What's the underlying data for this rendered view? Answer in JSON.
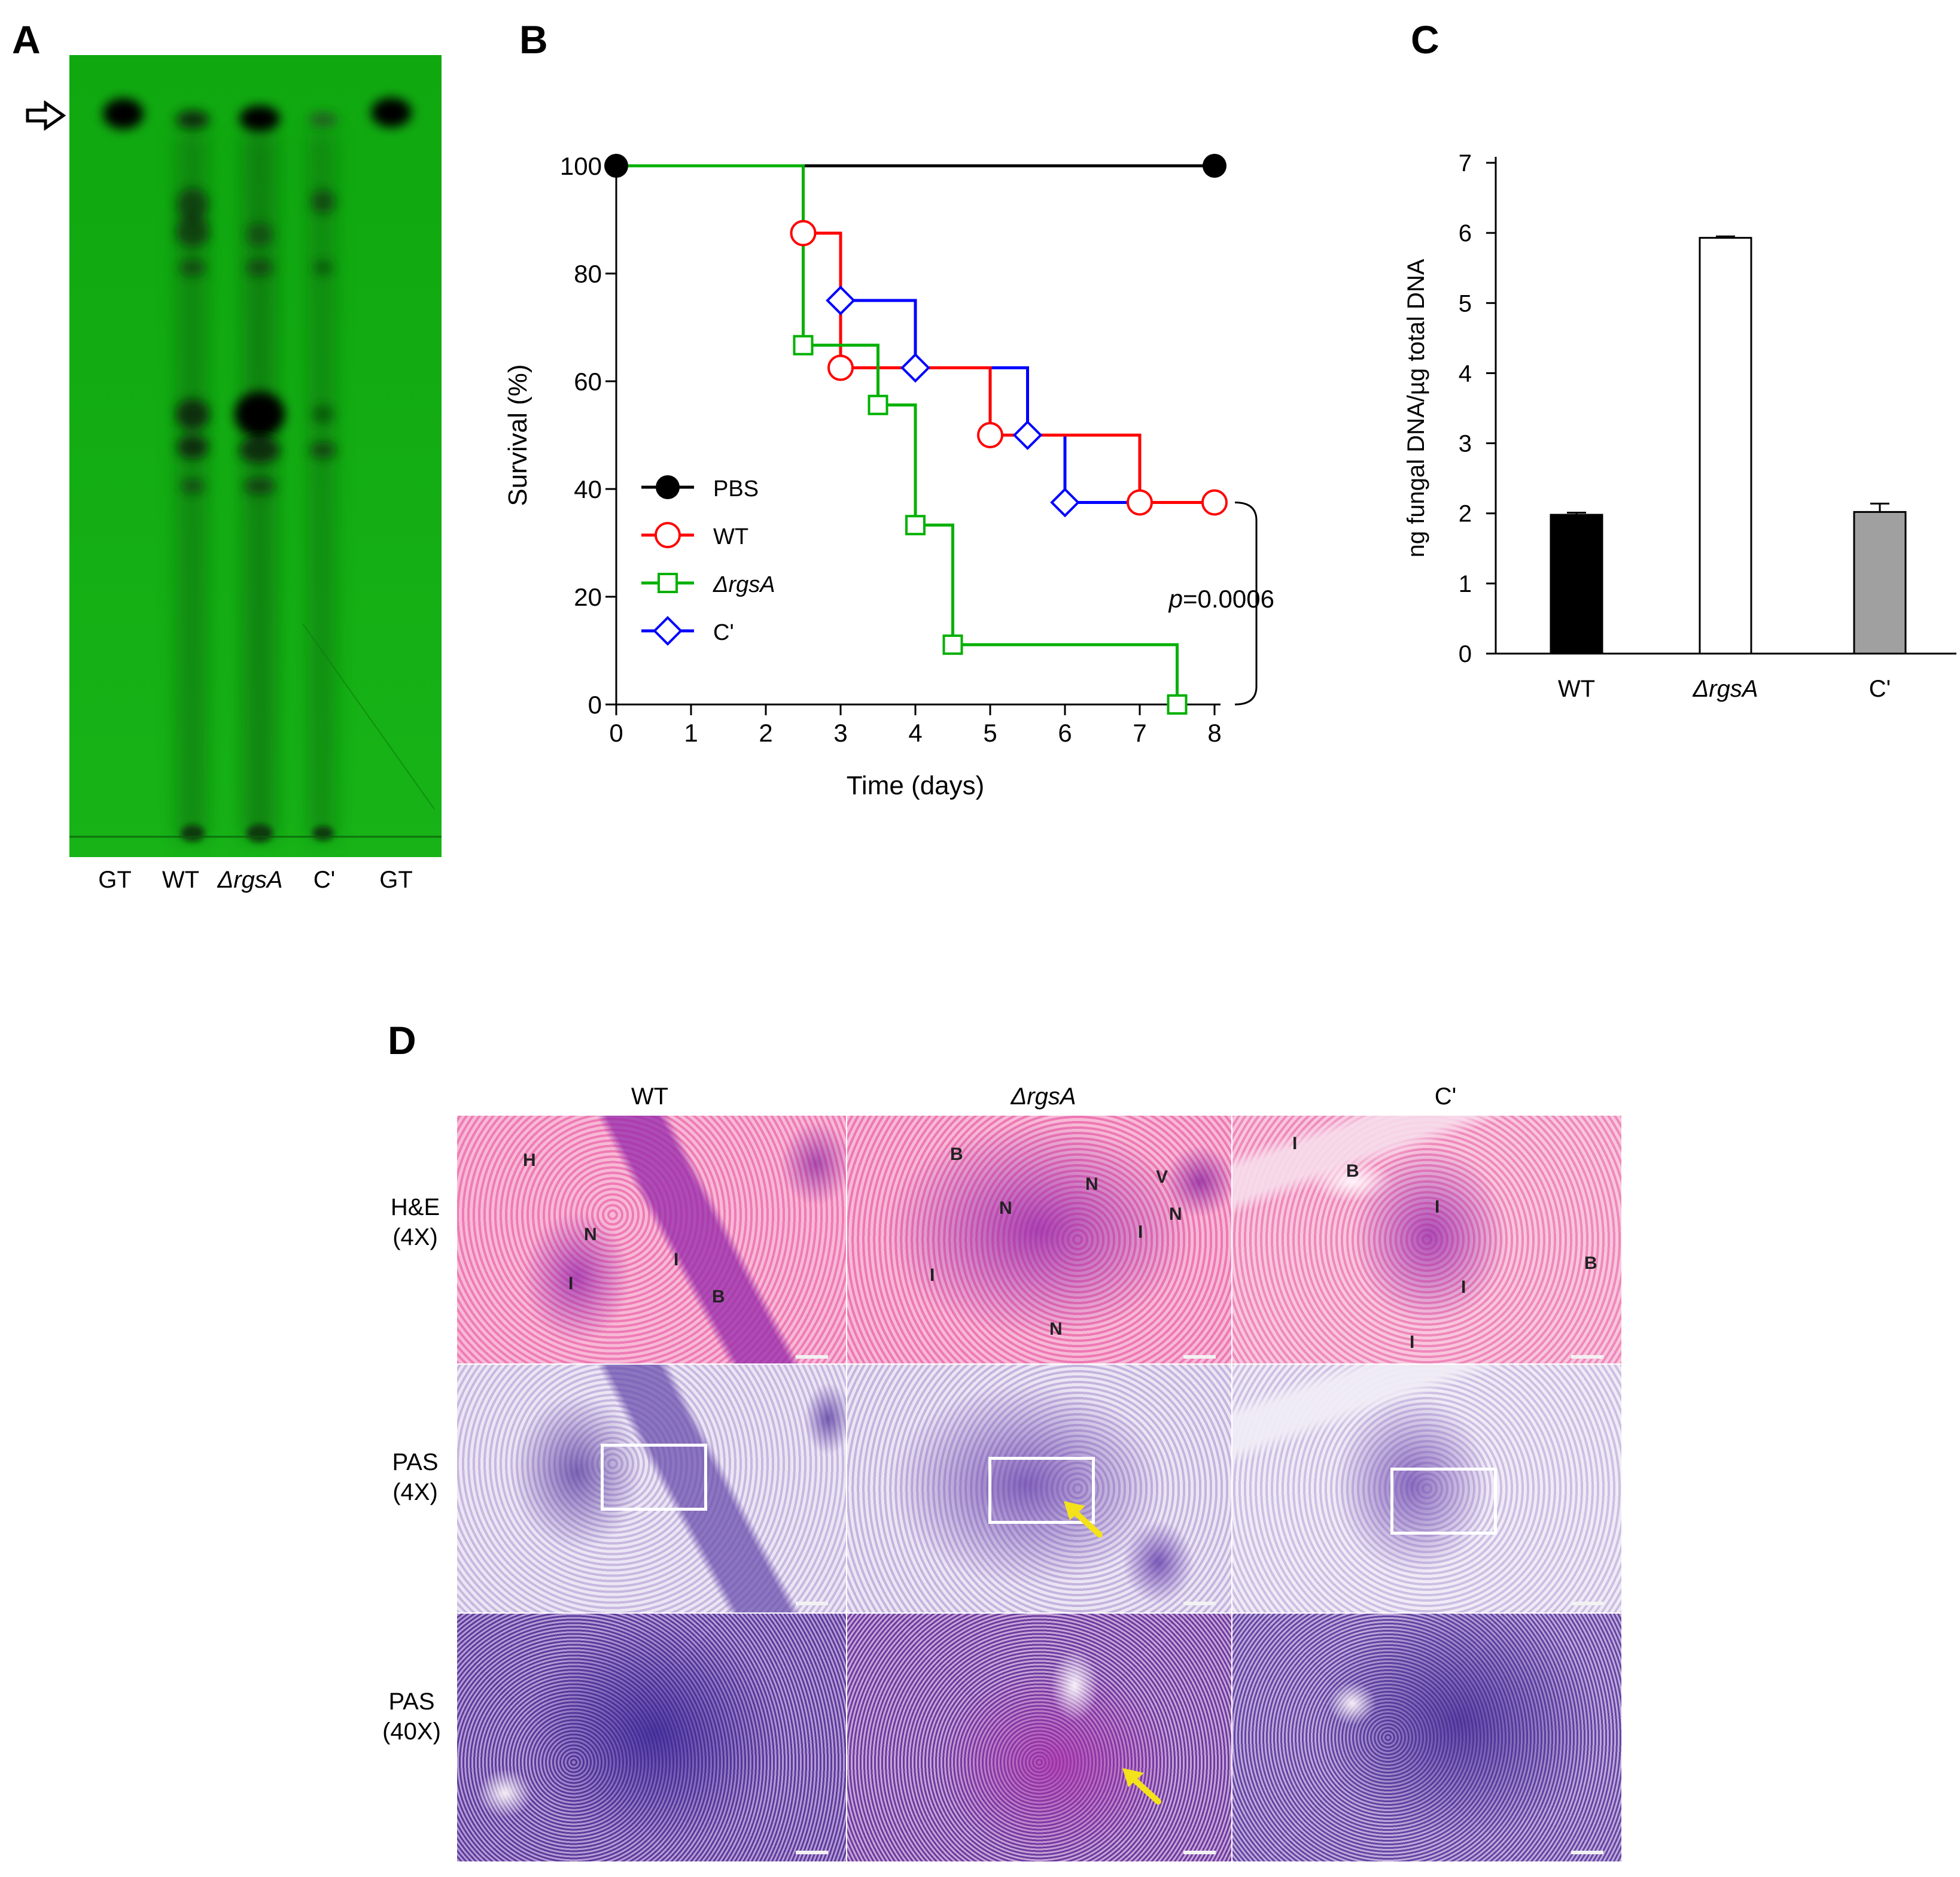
{
  "panel_labels": {
    "a": "A",
    "b": "B",
    "c": "C",
    "d": "D"
  },
  "tlc": {
    "lanes": [
      "GT",
      "WT",
      "ΔrgsA",
      "C'",
      "GT"
    ],
    "background_color": "#10b010",
    "arrow_icon": "hollow-right-arrow-icon"
  },
  "chart_data": [
    {
      "type": "line",
      "xlabel": "Time (days)",
      "ylabel": "Survival (%)",
      "xlim": [
        0,
        8
      ],
      "ylim": [
        0,
        100
      ],
      "xticks": [
        0,
        1,
        2,
        3,
        4,
        5,
        6,
        7,
        8
      ],
      "yticks": [
        0,
        20,
        40,
        60,
        80,
        100
      ],
      "annotation": "p=0.0006",
      "annotation_parts": {
        "italic": "p",
        "rest": "=0.0006"
      },
      "legend_placement": "lower-left",
      "series": [
        {
          "name": "PBS",
          "color": "#000000",
          "marker": "filled-circle",
          "x": [
            0,
            8
          ],
          "y": [
            100,
            100
          ],
          "markers": [
            [
              0,
              100
            ],
            [
              8,
              100
            ]
          ]
        },
        {
          "name": "WT",
          "color": "#ff0000",
          "marker": "open-circle",
          "x": [
            0,
            2.5,
            2.5,
            3,
            3,
            5,
            5,
            7,
            7,
            8
          ],
          "y": [
            100,
            100,
            87.5,
            87.5,
            62.5,
            62.5,
            50,
            50,
            37.5,
            37.5
          ],
          "markers": [
            [
              2.5,
              87.5
            ],
            [
              3,
              62.5
            ],
            [
              5,
              50
            ],
            [
              7,
              37.5
            ],
            [
              8,
              37.5
            ]
          ]
        },
        {
          "name": "ΔrgsA",
          "color": "#00b000",
          "marker": "open-square",
          "x": [
            0,
            2.5,
            2.5,
            3.5,
            3.5,
            4,
            4,
            4.5,
            4.5,
            7.5,
            7.5
          ],
          "y": [
            100,
            100,
            66.7,
            66.7,
            55.6,
            55.6,
            33.3,
            33.3,
            11.1,
            11.1,
            0
          ],
          "markers": [
            [
              2.5,
              66.7
            ],
            [
              3.5,
              55.6
            ],
            [
              4,
              33.3
            ],
            [
              4.5,
              11.1
            ],
            [
              7.5,
              0
            ]
          ]
        },
        {
          "name": "C'",
          "color": "#0000ff",
          "marker": "open-diamond",
          "x": [
            0,
            2.5,
            2.5,
            3,
            3,
            4,
            4,
            5.5,
            5.5,
            6,
            6,
            8
          ],
          "y": [
            100,
            100,
            87.5,
            87.5,
            75,
            75,
            62.5,
            62.5,
            50,
            50,
            37.5,
            37.5
          ],
          "markers": [
            [
              3,
              75
            ],
            [
              4,
              62.5
            ],
            [
              5.5,
              50
            ],
            [
              6,
              37.5
            ]
          ]
        }
      ]
    },
    {
      "type": "bar",
      "ylabel": "ng fungal DNA/µg total DNA",
      "ylim": [
        0,
        7
      ],
      "yticks": [
        0,
        1,
        2,
        3,
        4,
        5,
        6,
        7
      ],
      "categories": [
        "WT",
        "ΔrgsA",
        "C'"
      ],
      "values": [
        1.98,
        5.93,
        2.02
      ],
      "errors": [
        0.03,
        0.02,
        0.12
      ],
      "colors": [
        "#000000",
        "#ffffff",
        "#a0a0a0"
      ]
    }
  ],
  "histology": {
    "columns": [
      "WT",
      "ΔrgsA",
      "C'"
    ],
    "rows": [
      {
        "line1": "H&E",
        "line2": "(4X)"
      },
      {
        "line1": "PAS",
        "line2": "(4X)"
      },
      {
        "line1": "PAS",
        "line2": "(40X)"
      }
    ],
    "he_labels": {
      "wt": [
        "H",
        "N",
        "I",
        "I",
        "B"
      ],
      "rgsa": [
        "B",
        "N",
        "V",
        "N",
        "N",
        "I",
        "I",
        "N"
      ],
      "comp": [
        "I",
        "B",
        "I",
        "I",
        "B",
        "I"
      ]
    },
    "arrow_color": "#f4e21a",
    "arrow_icon": "yellow-arrow-icon"
  }
}
